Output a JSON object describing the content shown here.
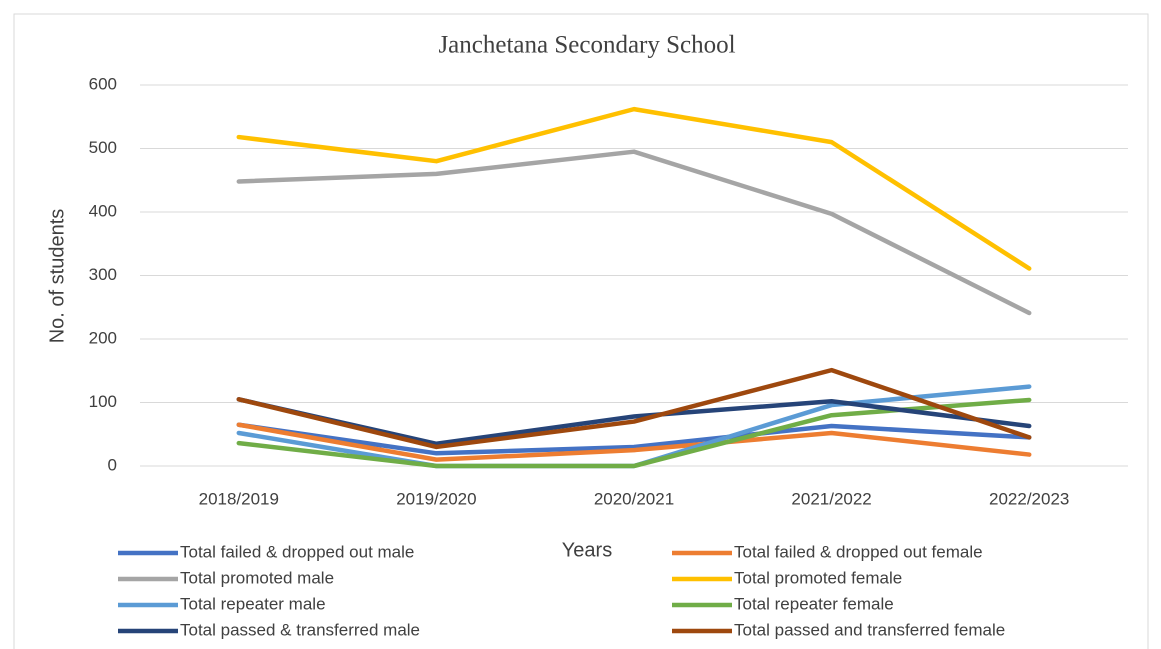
{
  "chart_data": {
    "type": "line",
    "title": "Janchetana Secondary School",
    "x_label": "Years",
    "y_label": "No. of students",
    "categories": [
      "2018/2019",
      "2019/2020",
      "2020/2021",
      "2021/2022",
      "2022/2023"
    ],
    "series": [
      {
        "name": "Total failed & dropped out male",
        "color": "#4472c4",
        "values": [
          65,
          20,
          30,
          63,
          45
        ]
      },
      {
        "name": "Total failed & dropped out female",
        "color": "#ed7d31",
        "values": [
          65,
          10,
          25,
          52,
          18
        ]
      },
      {
        "name": "Total promoted male",
        "color": "#a5a5a5",
        "values": [
          448,
          460,
          495,
          397,
          241
        ]
      },
      {
        "name": "Total promoted female",
        "color": "#ffc000",
        "values": [
          518,
          480,
          562,
          510,
          311
        ]
      },
      {
        "name": "Total repeater male",
        "color": "#5b9bd5",
        "values": [
          52,
          0,
          0,
          96,
          125
        ]
      },
      {
        "name": "Total repeater female",
        "color": "#70ad47",
        "values": [
          36,
          0,
          0,
          80,
          104
        ]
      },
      {
        "name": "Total passed & transferred male",
        "color": "#264478",
        "values": [
          105,
          35,
          78,
          102,
          63
        ]
      },
      {
        "name": "Total passed and transferred female",
        "color": "#9e480e",
        "values": [
          105,
          30,
          70,
          151,
          45
        ]
      }
    ],
    "ylim": [
      0,
      600
    ],
    "yticks": [
      0,
      100,
      200,
      300,
      400,
      500,
      600
    ],
    "grid": true,
    "legend": "bottom"
  }
}
